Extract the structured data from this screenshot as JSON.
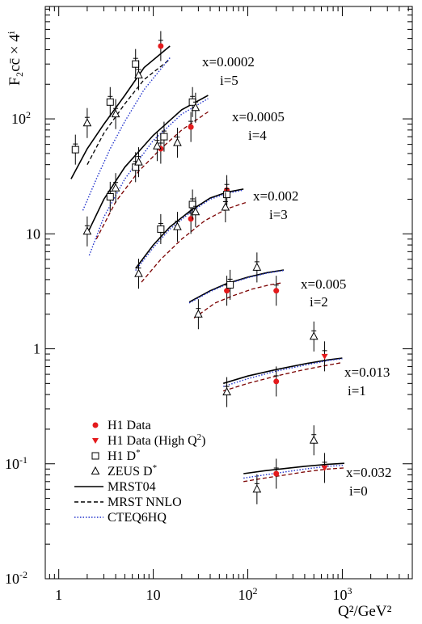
{
  "chart_data": {
    "type": "scatter",
    "x_scale": "log",
    "y_scale": "log",
    "xlim": [
      0.72,
      5500
    ],
    "ylim": [
      0.01,
      950
    ],
    "xlabel": "Q²/GeV²",
    "ylabel": "F₂cc̄ × 4ⁱ",
    "x_ticks": [
      {
        "value": 1,
        "label": "1"
      },
      {
        "value": 10,
        "label": "10"
      },
      {
        "value": 100,
        "label": "10",
        "exp": "2"
      },
      {
        "value": 1000,
        "label": "10",
        "exp": "3"
      }
    ],
    "y_ticks": [
      {
        "value": 0.01,
        "label": "10",
        "exp": "-2"
      },
      {
        "value": 0.1,
        "label": "10",
        "exp": "-1"
      },
      {
        "value": 1,
        "label": "1",
        "exp": ""
      },
      {
        "value": 10,
        "label": "10",
        "exp": ""
      },
      {
        "value": 100,
        "label": "10",
        "exp": "2"
      }
    ],
    "legend": [
      {
        "key": "h1",
        "label": "H1 Data",
        "marker": "circle",
        "color": "#e41a1c"
      },
      {
        "key": "h1high",
        "label": "H1 Data (High Q",
        "sup": "2",
        "tail": ")",
        "marker": "triangle-down",
        "color": "#e41a1c"
      },
      {
        "key": "h1dstar",
        "label": "H1 D",
        "sup": "*",
        "tail": "",
        "marker": "square",
        "color": "#000000"
      },
      {
        "key": "zeus",
        "label": "ZEUS D",
        "sup": "*",
        "tail": "",
        "marker": "triangle-up",
        "color": "#000000"
      },
      {
        "key": "mrst04",
        "label": "MRST04",
        "line": "solid",
        "color": "#000000"
      },
      {
        "key": "nnlo",
        "label": "MRST NNLO",
        "line": "dashed",
        "color": "#000000"
      },
      {
        "key": "cteq",
        "label": "CTEQ6HQ",
        "line": "dotted",
        "color": "#2233cc"
      }
    ],
    "bins": [
      {
        "x_label": "x=0.0002",
        "i_label": "i=5",
        "curves": {
          "mrst04": [
            [
              1.35,
              30
            ],
            [
              2,
              55
            ],
            [
              3,
              90
            ],
            [
              5,
              160
            ],
            [
              8,
              280
            ],
            [
              15,
              430
            ]
          ],
          "nnlo": [
            [
              2,
              40
            ],
            [
              3,
              75
            ],
            [
              5,
              135
            ],
            [
              8,
              220
            ],
            [
              15,
              330
            ]
          ],
          "cteq": [
            [
              1.8,
              16
            ],
            [
              2.5,
              30
            ],
            [
              3.5,
              55
            ],
            [
              5,
              95
            ],
            [
              8,
              180
            ],
            [
              15,
              340
            ]
          ]
        },
        "points": {
          "h1": [
            [
              12,
              430
            ]
          ],
          "h1dstar": [
            [
              1.5,
              54
            ],
            [
              3.5,
              140
            ],
            [
              6.5,
              300
            ]
          ],
          "zeus": [
            [
              2.0,
              92
            ],
            [
              4.0,
              110
            ],
            [
              7.0,
              240
            ]
          ]
        }
      },
      {
        "x_label": "x=0.0005",
        "i_label": "i=4",
        "curves": {
          "mrst04": [
            [
              2.0,
              10
            ],
            [
              3,
              20
            ],
            [
              5,
              38
            ],
            [
              10,
              72
            ],
            [
              20,
              120
            ],
            [
              38,
              160
            ]
          ],
          "nnlo": [
            [
              2.5,
              9
            ],
            [
              4,
              19
            ],
            [
              7,
              35
            ],
            [
              12,
              55
            ],
            [
              20,
              80
            ],
            [
              38,
              115
            ]
          ],
          "cteq": [
            [
              2.1,
              6.5
            ],
            [
              3,
              14
            ],
            [
              5,
              30
            ],
            [
              10,
              65
            ],
            [
              20,
              110
            ],
            [
              38,
              150
            ]
          ]
        },
        "points": {
          "h1": [
            [
              12,
              55
            ],
            [
              25,
              85
            ]
          ],
          "h1dstar": [
            [
              3.5,
              21
            ],
            [
              6.5,
              38
            ],
            [
              13,
              70
            ],
            [
              26,
              140
            ]
          ],
          "zeus": [
            [
              2.0,
              10.5
            ],
            [
              4.0,
              25
            ],
            [
              7.0,
              42
            ],
            [
              11,
              58
            ],
            [
              18,
              62
            ],
            [
              28,
              125
            ]
          ]
        }
      },
      {
        "x_label": "x=0.002",
        "i_label": "i=3",
        "curves": {
          "mrst04": [
            [
              6.5,
              5
            ],
            [
              10,
              8
            ],
            [
              15,
              11.5
            ],
            [
              25,
              16
            ],
            [
              40,
              20.5
            ],
            [
              60,
              23
            ],
            [
              90,
              24.5
            ]
          ],
          "nnlo": [
            [
              7.5,
              3.8
            ],
            [
              12,
              6
            ],
            [
              20,
              9
            ],
            [
              35,
              13
            ],
            [
              60,
              16.5
            ],
            [
              100,
              19
            ]
          ],
          "cteq": [
            [
              6.5,
              4.8
            ],
            [
              10,
              7.6
            ],
            [
              15,
              11
            ],
            [
              25,
              15.5
            ],
            [
              40,
              20
            ],
            [
              60,
              22.5
            ],
            [
              90,
              24
            ]
          ]
        },
        "points": {
          "h1": [
            [
              25,
              13.5
            ],
            [
              60,
              24
            ]
          ],
          "h1dstar": [
            [
              12,
              11
            ],
            [
              26,
              18
            ],
            [
              60,
              22
            ]
          ],
          "zeus": [
            [
              7,
              4.5
            ],
            [
              18,
              11.5
            ],
            [
              28,
              15.5
            ],
            [
              58,
              17
            ]
          ]
        }
      },
      {
        "x_label": "x=0.005",
        "i_label": "i=2",
        "curves": {
          "mrst04": [
            [
              24,
              2.55
            ],
            [
              40,
              3.2
            ],
            [
              60,
              3.7
            ],
            [
              100,
              4.2
            ],
            [
              160,
              4.6
            ],
            [
              240,
              4.85
            ]
          ],
          "nnlo": [
            [
              27,
              1.85
            ],
            [
              45,
              2.5
            ],
            [
              70,
              2.9
            ],
            [
              110,
              3.3
            ],
            [
              170,
              3.6
            ],
            [
              230,
              3.75
            ]
          ],
          "cteq": [
            [
              24,
              2.5
            ],
            [
              40,
              3.15
            ],
            [
              60,
              3.65
            ],
            [
              100,
              4.15
            ],
            [
              160,
              4.55
            ],
            [
              240,
              4.8
            ]
          ]
        },
        "points": {
          "h1": [
            [
              60,
              3.2
            ],
            [
              200,
              3.2
            ]
          ],
          "h1dstar": [
            [
              65,
              3.6
            ]
          ],
          "zeus": [
            [
              30,
              2.0
            ],
            [
              125,
              5.1
            ]
          ]
        }
      },
      {
        "x_label": "x=0.013",
        "i_label": "i=1",
        "curves": {
          "mrst04": [
            [
              55,
              0.5
            ],
            [
              100,
              0.58
            ],
            [
              200,
              0.66
            ],
            [
              400,
              0.74
            ],
            [
              700,
              0.8
            ],
            [
              1000,
              0.83
            ]
          ],
          "nnlo": [
            [
              55,
              0.43
            ],
            [
              100,
              0.5
            ],
            [
              200,
              0.58
            ],
            [
              400,
              0.66
            ],
            [
              700,
              0.72
            ],
            [
              1000,
              0.76
            ]
          ],
          "cteq": [
            [
              55,
              0.47
            ],
            [
              100,
              0.55
            ],
            [
              200,
              0.64
            ],
            [
              400,
              0.72
            ],
            [
              700,
              0.79
            ],
            [
              1000,
              0.82
            ]
          ]
        },
        "points": {
          "h1": [
            [
              200,
              0.52
            ]
          ],
          "h1high": [
            [
              650,
              0.86
            ]
          ],
          "zeus": [
            [
              60,
              0.42
            ],
            [
              500,
              1.28
            ]
          ]
        }
      },
      {
        "x_label": "x=0.032",
        "i_label": "i=0",
        "curves": {
          "mrst04": [
            [
              90,
              0.082
            ],
            [
              150,
              0.087
            ],
            [
              250,
              0.091
            ],
            [
              400,
              0.095
            ],
            [
              700,
              0.099
            ],
            [
              1050,
              0.101
            ]
          ],
          "nnlo": [
            [
              90,
              0.07
            ],
            [
              150,
              0.075
            ],
            [
              250,
              0.08
            ],
            [
              400,
              0.085
            ],
            [
              700,
              0.09
            ],
            [
              1050,
              0.092
            ]
          ],
          "cteq": [
            [
              90,
              0.075
            ],
            [
              150,
              0.08
            ],
            [
              250,
              0.085
            ],
            [
              400,
              0.09
            ],
            [
              700,
              0.095
            ],
            [
              1050,
              0.097
            ]
          ]
        },
        "points": {
          "h1": [
            [
              200,
              0.082
            ]
          ],
          "h1high": [
            [
              650,
              0.092
            ]
          ],
          "zeus": [
            [
              125,
              0.06
            ],
            [
              500,
              0.16
            ]
          ]
        }
      }
    ]
  }
}
